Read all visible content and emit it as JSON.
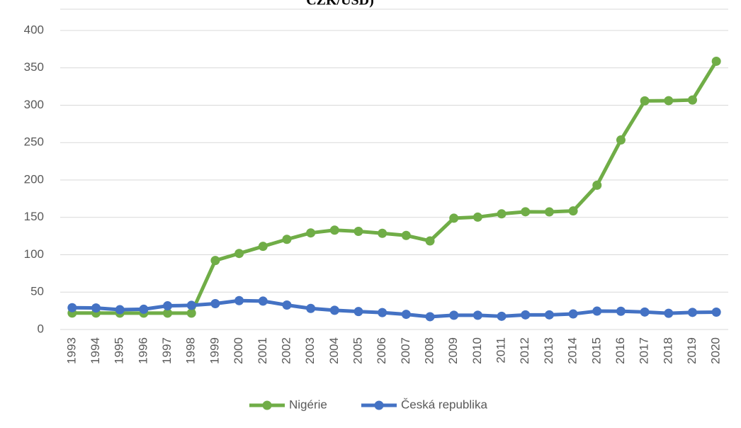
{
  "chart_data": {
    "type": "line",
    "title": "CZK/USD)",
    "categories": [
      "1993",
      "1994",
      "1995",
      "1996",
      "1997",
      "1998",
      "1999",
      "2000",
      "2001",
      "2002",
      "2003",
      "2004",
      "2005",
      "2006",
      "2007",
      "2008",
      "2009",
      "2010",
      "2011",
      "2012",
      "2013",
      "2014",
      "2015",
      "2016",
      "2017",
      "2018",
      "2019",
      "2020"
    ],
    "series": [
      {
        "name": "Nigérie",
        "color": "#70ad47",
        "values": [
          22,
          22,
          21.9,
          21.9,
          21.9,
          21.9,
          92.3,
          101.7,
          111.2,
          120.6,
          129.2,
          132.9,
          131.3,
          128.7,
          125.8,
          118.5,
          148.9,
          150.3,
          154.7,
          157.5,
          157.3,
          158.6,
          193,
          253.5,
          305.8,
          306.1,
          307,
          358.8
        ]
      },
      {
        "name": "Česká republika",
        "color": "#4472c4",
        "values": [
          29.2,
          28.8,
          26.5,
          27.1,
          31.7,
          32.3,
          34.6,
          38.6,
          38.0,
          32.7,
          28.2,
          25.7,
          24.0,
          22.6,
          20.3,
          17.1,
          19.1,
          19.1,
          17.7,
          19.6,
          19.6,
          20.8,
          24.6,
          24.4,
          23.4,
          21.7,
          22.9,
          23.2
        ]
      }
    ],
    "ylim": [
      0,
      400
    ],
    "yticks": [
      0,
      50,
      100,
      150,
      200,
      250,
      300,
      350,
      400
    ],
    "grid": true,
    "legend": "bottom"
  }
}
